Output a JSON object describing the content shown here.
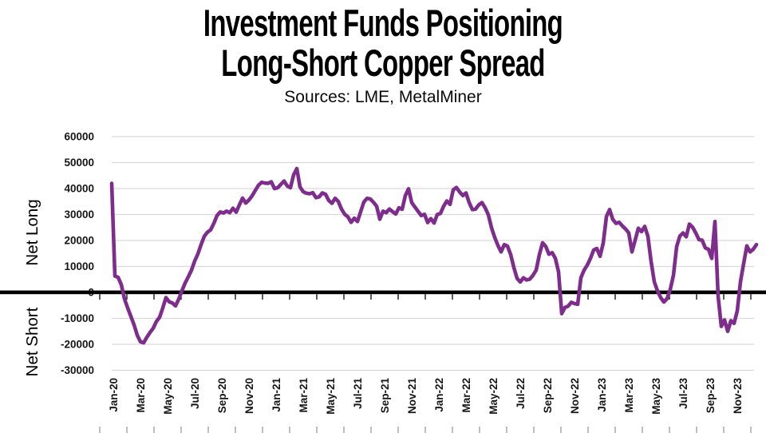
{
  "title": {
    "line1": "Investment Funds Positioning",
    "line2": "Long-Short Copper Spread",
    "subtitle": "Sources: LME, MetalMiner"
  },
  "axis": {
    "net_long_label": "Net Long",
    "net_short_label": "Net Short"
  },
  "colors": {
    "series_purple": "#7E2D8C",
    "gridline": "#D9D9D9",
    "zero_line": "#000000",
    "tick_label": "#161616",
    "bottom_tick": "#9a9a9a"
  },
  "chart_data": {
    "type": "line",
    "title": "Investment Funds Positioning Long-Short Copper Spread",
    "subtitle": "Sources: LME, MetalMiner",
    "ylabel_positive": "Net Long",
    "ylabel_negative": "Net Short",
    "ylim": [
      -30000,
      60000
    ],
    "y_ticks": [
      60000,
      50000,
      40000,
      30000,
      20000,
      10000,
      0,
      -10000,
      -20000,
      -30000
    ],
    "x_tick_labels": [
      "Jan-20",
      "Mar-20",
      "May-20",
      "Jul-20",
      "Sep-20",
      "Nov-20",
      "Jan-21",
      "Mar-21",
      "May-21",
      "Jul-21",
      "Sep-21",
      "Nov-21",
      "Jan-22",
      "Mar-22",
      "May-22",
      "Jul-22",
      "Sep-22",
      "Nov-22",
      "Jan-23",
      "Mar-23",
      "May-23",
      "Jul-23",
      "Sep-23",
      "Nov-23"
    ],
    "x_frequency": "weekly",
    "x_start": "Jan-2020",
    "x_end": "Dec-2023",
    "grid": "horizontal-only",
    "legend": "none",
    "zero_axis_emphasized": true,
    "series": [
      {
        "name": "Long-Short Copper Spread (net contracts)",
        "color": "#7E2D8C",
        "values": [
          42000,
          6300,
          5800,
          3000,
          -2500,
          -6000,
          -9200,
          -12500,
          -16500,
          -19000,
          -19400,
          -17300,
          -15400,
          -13800,
          -11200,
          -9600,
          -6000,
          -2000,
          -3600,
          -4100,
          -5200,
          -2600,
          600,
          3600,
          6000,
          8600,
          12100,
          14800,
          18400,
          21600,
          23200,
          24100,
          26600,
          29600,
          31000,
          30600,
          31300,
          30700,
          32400,
          30900,
          33700,
          36300,
          34400,
          35600,
          37200,
          39300,
          41300,
          42400,
          42100,
          42000,
          42600,
          40000,
          40300,
          41600,
          42900,
          41000,
          40300,
          45300,
          47700,
          40600,
          38800,
          38200,
          38000,
          38400,
          36500,
          36800,
          38300,
          37800,
          35400,
          34300,
          36200,
          35000,
          32100,
          30100,
          29100,
          27000,
          28600,
          27300,
          31100,
          34800,
          36200,
          36000,
          34700,
          33200,
          28200,
          31300,
          30700,
          32100,
          31100,
          30200,
          32600,
          32000,
          37300,
          39900,
          34600,
          32900,
          31200,
          29600,
          30100,
          26900,
          28400,
          26700,
          30000,
          30400,
          33200,
          35200,
          33900,
          39500,
          40400,
          38700,
          37300,
          38300,
          34600,
          31900,
          32100,
          33700,
          34600,
          32600,
          29900,
          24900,
          21200,
          18100,
          15600,
          18400,
          17800,
          14600,
          9600,
          5400,
          4000,
          5600,
          4800,
          5100,
          6600,
          8600,
          14600,
          19100,
          17700,
          14700,
          15300,
          13100,
          7900,
          -8200,
          -5800,
          -5300,
          -3800,
          -4300,
          -4600,
          5600,
          8600,
          10500,
          13100,
          16300,
          16900,
          13900,
          19000,
          29200,
          31900,
          28100,
          26600,
          27000,
          25600,
          24400,
          22900,
          15600,
          20100,
          24700,
          23400,
          25400,
          21600,
          11900,
          4100,
          600,
          -2000,
          -3700,
          -2400,
          1100,
          6600,
          17600,
          21700,
          22900,
          21400,
          26300,
          25100,
          22900,
          20300,
          20100,
          17100,
          16600,
          13100,
          27300,
          -1500,
          -13100,
          -10600,
          -15000,
          -10900,
          -11900,
          -7100,
          4100,
          11100,
          17900,
          15600,
          16600,
          18400
        ]
      }
    ]
  }
}
